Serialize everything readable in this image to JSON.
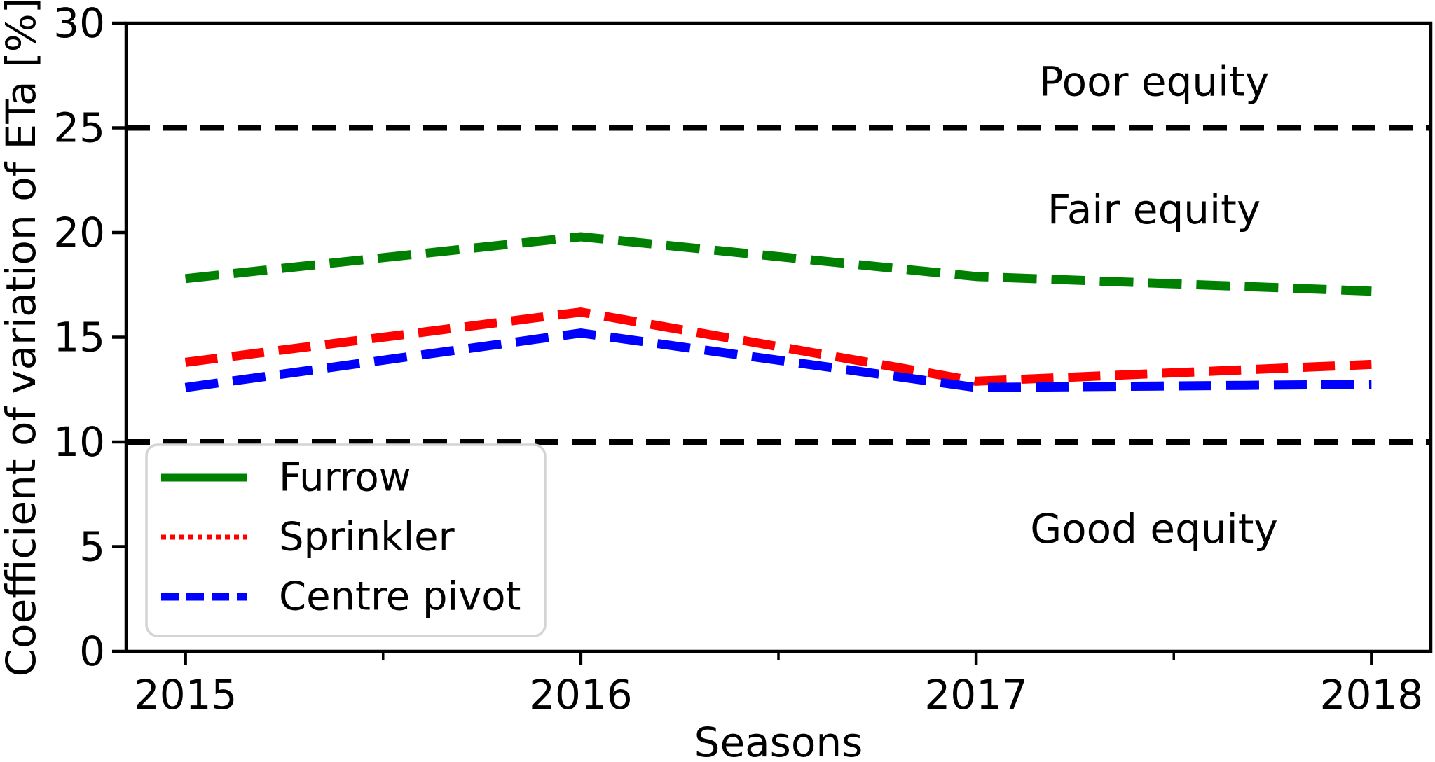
{
  "figure": {
    "background": "#ffffff"
  },
  "chart_data": {
    "type": "line",
    "title": "",
    "xlabel": "Seasons",
    "ylabel": "Coefficient of variation of ETa [%]",
    "x": [
      2015,
      2016,
      2017,
      2018
    ],
    "xlim": [
      2014.85,
      2018.15
    ],
    "ylim": [
      0,
      30
    ],
    "grid": false,
    "xticks": {
      "major": [
        2015,
        2016,
        2017,
        2018
      ],
      "labels": [
        "2015",
        "2016",
        "2017",
        "2018"
      ],
      "minor": [
        2015.5,
        2016.5,
        2017.5
      ]
    },
    "yticks": {
      "major": [
        0,
        5,
        10,
        15,
        20,
        25,
        30
      ],
      "labels": [
        "0",
        "5",
        "10",
        "15",
        "20",
        "25",
        "30"
      ]
    },
    "series": [
      {
        "name": "Furrow",
        "color": "#008000",
        "line_width": 13,
        "plot_dash": "48 21",
        "legend_style": "solid",
        "values": [
          17.8,
          19.8,
          17.9,
          17.2
        ]
      },
      {
        "name": "Sprinkler",
        "color": "#ff0000",
        "line_width": 13,
        "plot_dash": "46 21",
        "legend_style": "dotted",
        "values": [
          13.8,
          16.2,
          12.9,
          13.7
        ]
      },
      {
        "name": "Centre pivot",
        "color": "#0000ff",
        "line_width": 13,
        "plot_dash": "47 21",
        "legend_style": "dashed",
        "values": [
          12.6,
          15.2,
          12.6,
          12.75
        ]
      }
    ],
    "reference_lines": [
      {
        "y": 25,
        "color": "#000000",
        "dash": "34 19",
        "line_width": 8
      },
      {
        "y": 10,
        "color": "#000000",
        "dash": "34 19",
        "line_width": 8
      }
    ],
    "annotations": [
      {
        "text": "Poor equity",
        "x": 2017.45,
        "y": 27.2
      },
      {
        "text": "Fair equity",
        "x": 2017.45,
        "y": 21.1
      },
      {
        "text": "Good equity",
        "x": 2017.45,
        "y": 5.85
      }
    ],
    "legend": {
      "location": "lower left",
      "border_color": "#d4d4d4",
      "items": [
        {
          "label": "Furrow",
          "color": "#008000",
          "style": "solid"
        },
        {
          "label": "Sprinkler",
          "color": "#ff0000",
          "style": "dotted"
        },
        {
          "label": "Centre pivot",
          "color": "#0000ff",
          "style": "dashed"
        }
      ]
    }
  }
}
